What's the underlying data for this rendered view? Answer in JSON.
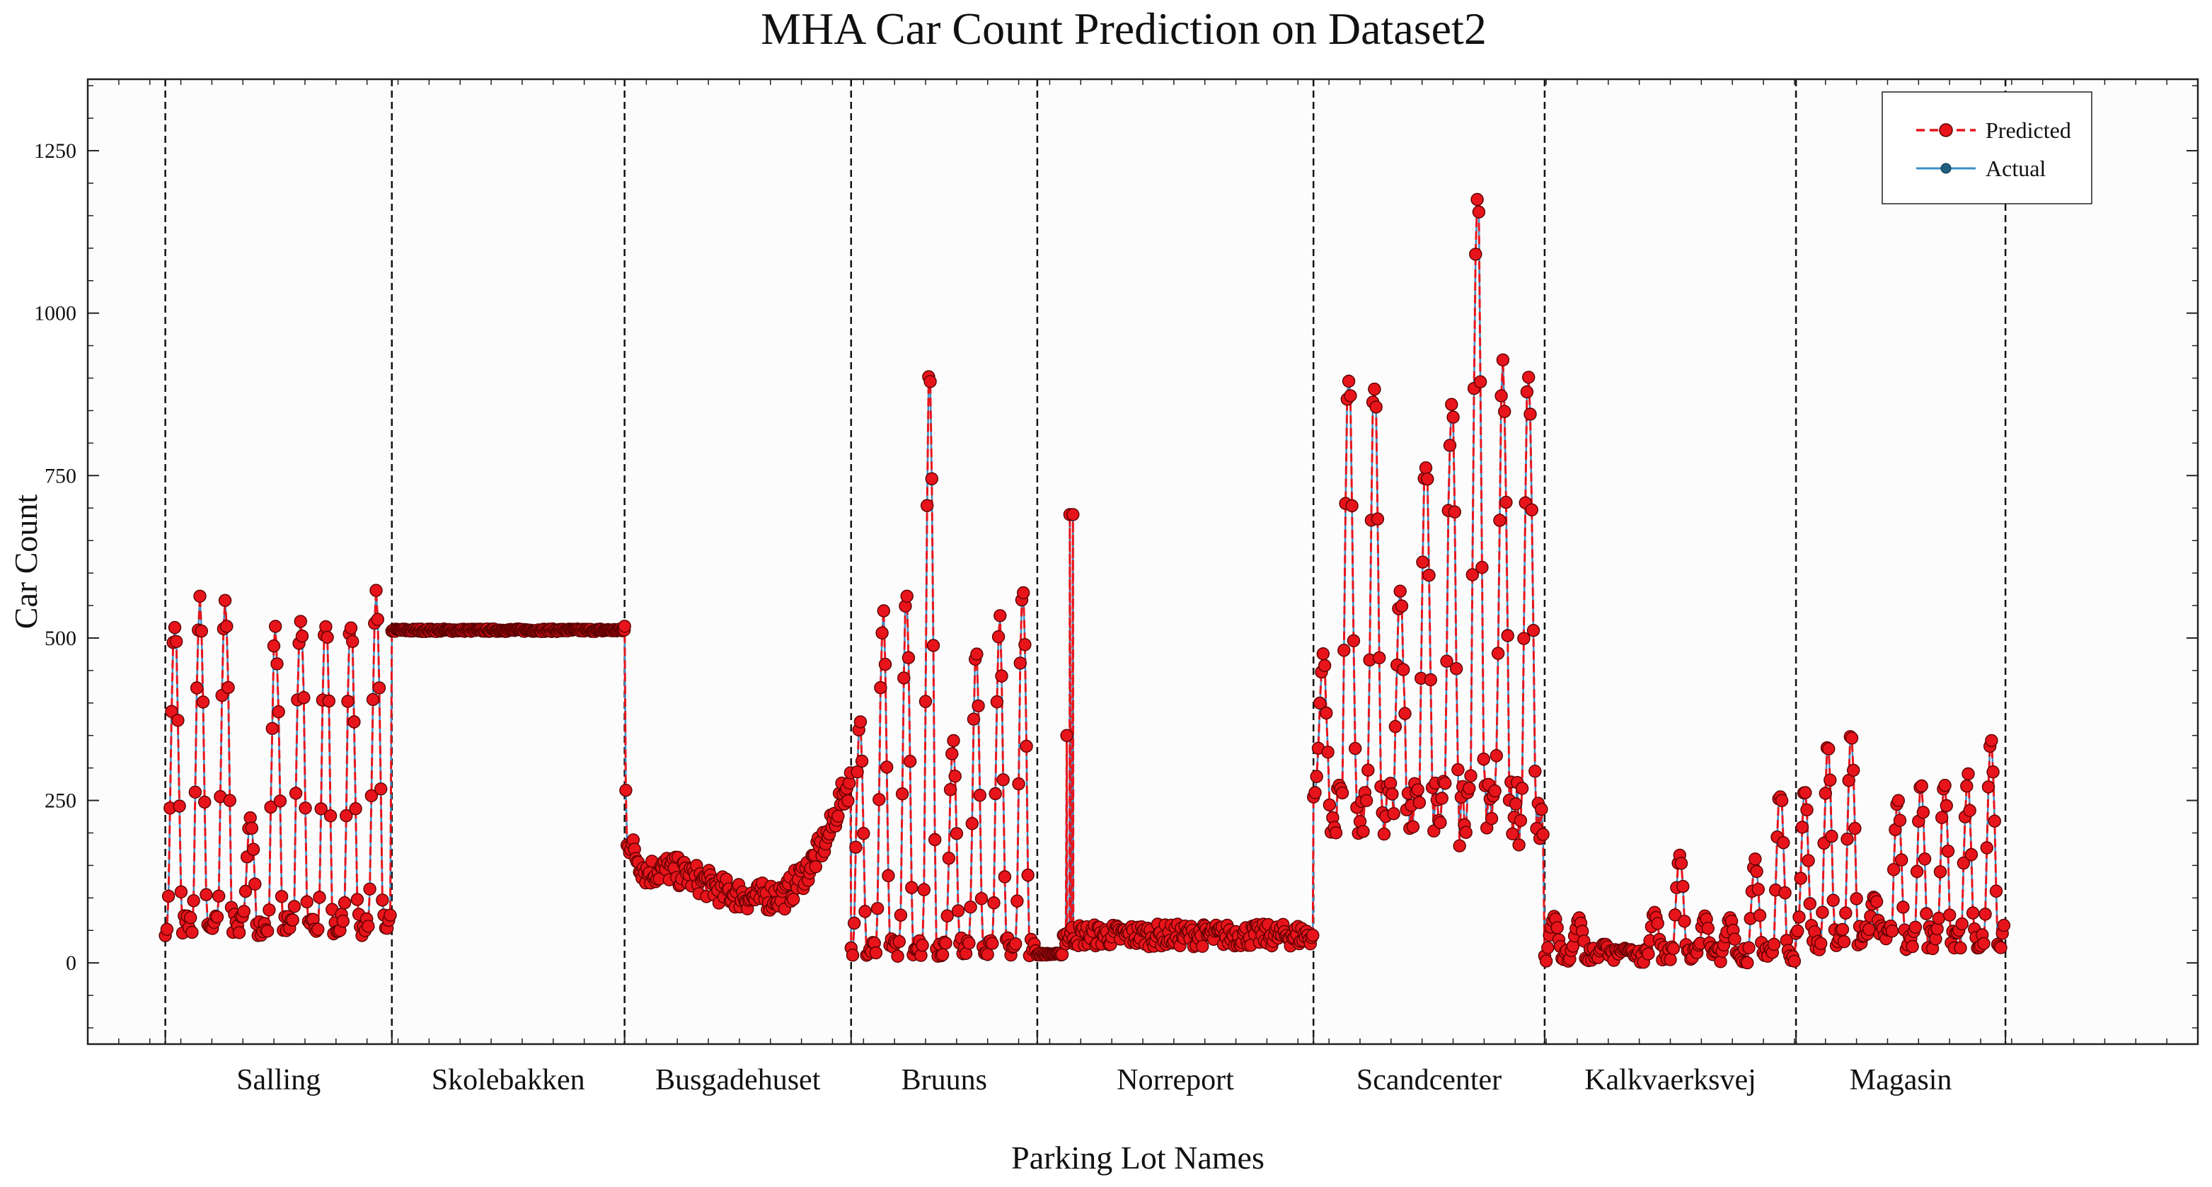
{
  "chart_data": {
    "type": "line",
    "title": "MHA Car Count Prediction on Dataset2",
    "xlabel": "Parking Lot Names",
    "ylabel": "Car Count",
    "ylim": [
      -125,
      1360
    ],
    "yticks": [
      0,
      250,
      500,
      750,
      1000,
      1250
    ],
    "ytick_labels": [
      "0",
      "250",
      "500",
      "750",
      "1000",
      "1250"
    ],
    "xlim": [
      0,
      1360
    ],
    "boundaries": [
      50,
      196,
      346,
      492,
      612,
      790,
      939,
      1101,
      1236
    ],
    "categories": [
      "Salling",
      "Skolebakken",
      "Busgadehuset",
      "Bruuns",
      "Norreport",
      "Scandcenter",
      "Kalkvaerksvej",
      "Magasin"
    ],
    "legend": {
      "position": "top-right",
      "entries": [
        "Predicted",
        "Actual"
      ]
    },
    "colors": {
      "predicted": "#e8141b",
      "predicted_marker_edge": "#5a0000",
      "actual": "#3a8fc7",
      "actual_marker": "#1f5f80",
      "axis": "#222222",
      "boundary": "#111111"
    },
    "segments": [
      {
        "name": "Salling",
        "x_start": 50,
        "x_end": 196,
        "pattern": "daily-peaks",
        "base": [
          42,
          75
        ],
        "peaks": [
          545,
          585,
          585,
          230,
          530,
          560,
          555,
          550,
          585
        ],
        "points_per_cycle": 16
      },
      {
        "name": "Skolebakken",
        "x_start": 196,
        "x_end": 346,
        "pattern": "flat",
        "level": 512
      },
      {
        "name": "Busgadehuset",
        "x_start": 346,
        "x_end": 492,
        "pattern": "trend",
        "knots": [
          [
            346,
            512
          ],
          [
            347,
            200
          ],
          [
            352,
            170
          ],
          [
            360,
            140
          ],
          [
            375,
            145
          ],
          [
            392,
            130
          ],
          [
            410,
            110
          ],
          [
            430,
            100
          ],
          [
            450,
            105
          ],
          [
            466,
            150
          ],
          [
            478,
            200
          ],
          [
            485,
            250
          ],
          [
            492,
            280
          ]
        ]
      },
      {
        "name": "Bruuns",
        "x_start": 492,
        "x_end": 612,
        "pattern": "daily-peaks",
        "base": [
          10,
          40
        ],
        "peaks": [
          380,
          550,
          575,
          938,
          360,
          490,
          560,
          615
        ],
        "points_per_cycle": 15
      },
      {
        "name": "Norreport",
        "x_start": 612,
        "x_end": 790,
        "pattern": "low-with-spike",
        "spike_values": [
          350,
          690,
          690
        ],
        "spike_x": [
          631,
          633,
          635
        ],
        "base": [
          10,
          55
        ]
      },
      {
        "name": "Scandcenter",
        "x_start": 790,
        "x_end": 939,
        "pattern": "daily-peaks",
        "base": [
          180,
          280
        ],
        "peaks": [
          485,
          945,
          930,
          580,
          810,
          900,
          1235,
          935,
          950
        ],
        "points_per_cycle": 16
      },
      {
        "name": "Kalkvaerksvej",
        "x_start": 939,
        "x_end": 1101,
        "pattern": "daily-peaks",
        "base": [
          0,
          25
        ],
        "peaks": [
          75,
          70,
          30,
          20,
          80,
          170,
          75,
          70,
          160,
          275
        ],
        "points_per_cycle": 16
      },
      {
        "name": "Magasin",
        "x_start": 1101,
        "x_end": 1236,
        "pattern": "daily-peaks",
        "base": [
          20,
          60
        ],
        "peaks": [
          275,
          345,
          365,
          105,
          265,
          280,
          285,
          300,
          360
        ],
        "points_per_cycle": 15
      }
    ]
  }
}
